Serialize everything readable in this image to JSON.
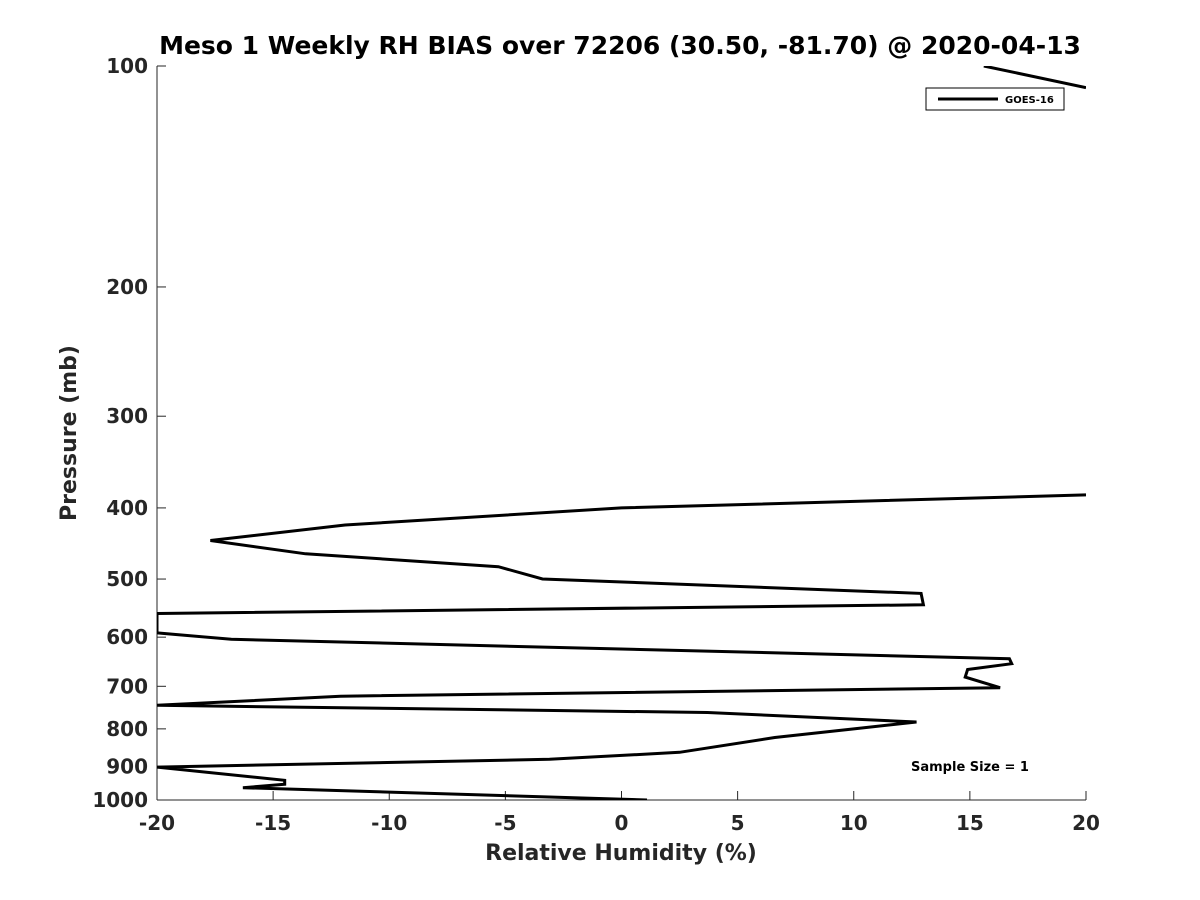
{
  "chart_data": {
    "type": "line",
    "title": "Meso 1 Weekly RH BIAS over 72206 (30.50, -81.70) @ 2020-04-13",
    "xlabel": "Relative Humidity (%)",
    "ylabel": "Pressure (mb)",
    "xlim": [
      -20,
      20
    ],
    "ylim": [
      100,
      1000
    ],
    "y_scale": "log",
    "y_reversed": true,
    "grid": false,
    "legend_position": "top-right",
    "x_ticks": [
      -20,
      -15,
      -10,
      -5,
      0,
      5,
      10,
      15,
      20
    ],
    "x_tick_labels": [
      "-20",
      "-15",
      "-10",
      "-5",
      "0",
      "5",
      "10",
      "15",
      "20"
    ],
    "y_ticks": [
      100,
      200,
      300,
      400,
      500,
      600,
      700,
      800,
      900,
      1000
    ],
    "y_tick_labels": [
      "100",
      "200",
      "300",
      "400",
      "500",
      "600",
      "700",
      "800",
      "900",
      "1000"
    ],
    "annotation": "Sample Size = 1",
    "series": [
      {
        "name": "GOES-16",
        "color": "#000000",
        "points": [
          [
            1.1,
            1000
          ],
          [
            -16.3,
            962
          ],
          [
            -14.5,
            952
          ],
          [
            -14.5,
            940
          ],
          [
            -20.0,
            902
          ],
          [
            -3.1,
            880
          ],
          [
            2.5,
            861
          ],
          [
            6.6,
            822
          ],
          [
            10.0,
            800
          ],
          [
            12.7,
            783
          ],
          [
            3.7,
            760
          ],
          [
            -20.0,
            743
          ],
          [
            -12.1,
            722
          ],
          [
            16.3,
            703
          ],
          [
            14.8,
            680
          ],
          [
            14.9,
            664
          ],
          [
            16.8,
            652
          ],
          [
            16.7,
            642
          ],
          [
            -16.8,
            604
          ],
          [
            -20.0,
            592
          ],
          [
            -20.0,
            557
          ],
          [
            13.0,
            542
          ],
          [
            12.9,
            523
          ],
          [
            -3.4,
            500
          ],
          [
            -5.3,
            481
          ],
          [
            -13.6,
            462
          ],
          [
            -17.7,
            443
          ],
          [
            -11.9,
            422
          ],
          [
            0.0,
            400
          ],
          [
            20.0,
            384
          ]
        ]
      },
      {
        "name": "",
        "color": "#000000",
        "points": [
          [
            15.6,
            100
          ],
          [
            20.0,
            107
          ]
        ]
      }
    ]
  }
}
